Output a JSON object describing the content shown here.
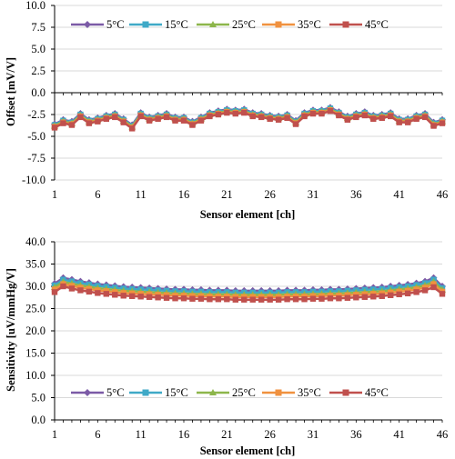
{
  "colors": {
    "5C": "#7b5aa6",
    "15C": "#3fa9c7",
    "25C": "#8db64b",
    "35C": "#f0913f",
    "45C": "#c0504d"
  },
  "chart_data": [
    {
      "type": "line",
      "title": "",
      "xlabel": "Sensor element [ch]",
      "ylabel": "Offset [mV/V]",
      "xlim": [
        1,
        46
      ],
      "ylim": [
        -10,
        10
      ],
      "grid": "horizontal",
      "legend_position": "top",
      "x_ticks": [
        "1",
        "6",
        "11",
        "16",
        "21",
        "26",
        "31",
        "36",
        "41",
        "46"
      ],
      "y_ticks": [
        "-10.0",
        "-7.5",
        "-5.0",
        "-2.5",
        "0.0",
        "2.5",
        "5.0",
        "7.5",
        "10.0"
      ],
      "x": [
        1,
        2,
        3,
        4,
        5,
        6,
        7,
        8,
        9,
        10,
        11,
        12,
        13,
        14,
        15,
        16,
        17,
        18,
        19,
        20,
        21,
        22,
        23,
        24,
        25,
        26,
        27,
        28,
        29,
        30,
        31,
        32,
        33,
        34,
        35,
        36,
        37,
        38,
        39,
        40,
        41,
        42,
        43,
        44,
        45,
        46
      ],
      "series": [
        {
          "name": "5°C",
          "values": [
            -3.6,
            -3.1,
            -3.3,
            -2.4,
            -3.1,
            -2.9,
            -2.6,
            -2.4,
            -3.0,
            -3.7,
            -2.3,
            -2.8,
            -2.6,
            -2.4,
            -2.8,
            -2.8,
            -3.3,
            -2.8,
            -2.3,
            -2.1,
            -1.9,
            -2.0,
            -1.9,
            -2.3,
            -2.4,
            -2.6,
            -2.7,
            -2.5,
            -3.2,
            -2.3,
            -2.0,
            -2.0,
            -1.7,
            -2.2,
            -2.7,
            -2.4,
            -2.2,
            -2.6,
            -2.5,
            -2.3,
            -3.0,
            -3.0,
            -2.6,
            -2.4,
            -3.4,
            -3.1
          ]
        },
        {
          "name": "15°C",
          "values": [
            -3.7,
            -3.2,
            -3.4,
            -2.5,
            -3.2,
            -3.0,
            -2.7,
            -2.5,
            -3.1,
            -3.8,
            -2.4,
            -2.9,
            -2.7,
            -2.5,
            -2.9,
            -2.9,
            -3.4,
            -2.9,
            -2.4,
            -2.2,
            -2.0,
            -2.1,
            -2.0,
            -2.4,
            -2.5,
            -2.7,
            -2.8,
            -2.6,
            -3.3,
            -2.4,
            -2.1,
            -2.1,
            -1.8,
            -2.3,
            -2.8,
            -2.5,
            -2.3,
            -2.7,
            -2.6,
            -2.4,
            -3.1,
            -3.1,
            -2.7,
            -2.5,
            -3.5,
            -3.2
          ]
        },
        {
          "name": "25°C",
          "values": [
            -3.8,
            -3.3,
            -3.5,
            -2.6,
            -3.3,
            -3.1,
            -2.8,
            -2.6,
            -3.2,
            -3.9,
            -2.5,
            -3.0,
            -2.8,
            -2.6,
            -3.0,
            -3.0,
            -3.5,
            -3.0,
            -2.5,
            -2.3,
            -2.1,
            -2.2,
            -2.1,
            -2.5,
            -2.6,
            -2.8,
            -2.9,
            -2.7,
            -3.4,
            -2.5,
            -2.2,
            -2.2,
            -1.9,
            -2.4,
            -2.9,
            -2.6,
            -2.4,
            -2.8,
            -2.7,
            -2.5,
            -3.2,
            -3.2,
            -2.8,
            -2.6,
            -3.6,
            -3.3
          ]
        },
        {
          "name": "35°C",
          "values": [
            -3.9,
            -3.4,
            -3.6,
            -2.7,
            -3.4,
            -3.2,
            -2.9,
            -2.7,
            -3.3,
            -4.0,
            -2.6,
            -3.1,
            -2.9,
            -2.7,
            -3.1,
            -3.1,
            -3.6,
            -3.1,
            -2.6,
            -2.4,
            -2.2,
            -2.3,
            -2.2,
            -2.6,
            -2.7,
            -2.9,
            -3.0,
            -2.8,
            -3.5,
            -2.6,
            -2.3,
            -2.3,
            -2.0,
            -2.5,
            -3.0,
            -2.7,
            -2.5,
            -2.9,
            -2.8,
            -2.6,
            -3.3,
            -3.3,
            -2.9,
            -2.7,
            -3.7,
            -3.4
          ]
        },
        {
          "name": "45°C",
          "values": [
            -4.0,
            -3.5,
            -3.7,
            -2.8,
            -3.5,
            -3.3,
            -3.0,
            -2.8,
            -3.4,
            -4.1,
            -2.7,
            -3.2,
            -3.0,
            -2.8,
            -3.2,
            -3.2,
            -3.7,
            -3.2,
            -2.7,
            -2.5,
            -2.3,
            -2.4,
            -2.3,
            -2.7,
            -2.8,
            -3.0,
            -3.1,
            -2.9,
            -3.6,
            -2.7,
            -2.4,
            -2.4,
            -2.1,
            -2.6,
            -3.1,
            -2.8,
            -2.6,
            -3.0,
            -2.9,
            -2.7,
            -3.4,
            -3.4,
            -3.0,
            -2.8,
            -3.8,
            -3.5
          ]
        }
      ]
    },
    {
      "type": "line",
      "title": "",
      "xlabel": "Sensor element [ch]",
      "ylabel": "Sensitivity [uV/mmHg/V]",
      "xlim": [
        1,
        46
      ],
      "ylim": [
        0,
        40
      ],
      "grid": "horizontal",
      "legend_position": "bottom",
      "x_ticks": [
        "1",
        "6",
        "11",
        "16",
        "21",
        "26",
        "31",
        "36",
        "41",
        "46"
      ],
      "y_ticks": [
        "0.0",
        "5.0",
        "10.0",
        "15.0",
        "20.0",
        "25.0",
        "30.0",
        "35.0",
        "40.0"
      ],
      "x": [
        1,
        2,
        3,
        4,
        5,
        6,
        7,
        8,
        9,
        10,
        11,
        12,
        13,
        14,
        15,
        16,
        17,
        18,
        19,
        20,
        21,
        22,
        23,
        24,
        25,
        26,
        27,
        28,
        29,
        30,
        31,
        32,
        33,
        34,
        35,
        36,
        37,
        38,
        39,
        40,
        41,
        42,
        43,
        44,
        45,
        46
      ],
      "series": [
        {
          "name": "5°C",
          "values": [
            30.6,
            31.9,
            31.5,
            31.1,
            30.8,
            30.5,
            30.3,
            30.1,
            29.9,
            29.8,
            29.7,
            29.6,
            29.5,
            29.4,
            29.3,
            29.3,
            29.2,
            29.2,
            29.1,
            29.1,
            29.1,
            29.0,
            29.0,
            29.0,
            29.0,
            29.0,
            29.0,
            29.1,
            29.1,
            29.1,
            29.2,
            29.2,
            29.3,
            29.3,
            29.4,
            29.5,
            29.6,
            29.7,
            29.8,
            30.0,
            30.2,
            30.4,
            30.7,
            31.1,
            31.9,
            30.0
          ]
        },
        {
          "name": "15°C",
          "values": [
            30.2,
            31.5,
            31.1,
            30.7,
            30.4,
            30.1,
            29.9,
            29.7,
            29.5,
            29.4,
            29.3,
            29.2,
            29.1,
            29.0,
            28.9,
            28.9,
            28.8,
            28.8,
            28.7,
            28.7,
            28.7,
            28.6,
            28.6,
            28.6,
            28.6,
            28.6,
            28.6,
            28.7,
            28.7,
            28.7,
            28.8,
            28.8,
            28.9,
            28.9,
            29.0,
            29.1,
            29.2,
            29.3,
            29.4,
            29.6,
            29.8,
            30.0,
            30.3,
            30.7,
            31.5,
            29.6
          ]
        },
        {
          "name": "25°C",
          "values": [
            29.8,
            31.0,
            30.6,
            30.2,
            29.9,
            29.6,
            29.4,
            29.2,
            29.0,
            28.9,
            28.8,
            28.7,
            28.6,
            28.5,
            28.4,
            28.4,
            28.3,
            28.3,
            28.2,
            28.2,
            28.2,
            28.1,
            28.1,
            28.1,
            28.1,
            28.1,
            28.1,
            28.2,
            28.2,
            28.2,
            28.3,
            28.3,
            28.4,
            28.4,
            28.5,
            28.6,
            28.7,
            28.8,
            28.9,
            29.1,
            29.3,
            29.5,
            29.8,
            30.2,
            31.0,
            29.2
          ]
        },
        {
          "name": "35°C",
          "values": [
            29.3,
            30.5,
            30.1,
            29.7,
            29.4,
            29.1,
            28.9,
            28.7,
            28.5,
            28.4,
            28.3,
            28.2,
            28.1,
            28.0,
            27.9,
            27.9,
            27.8,
            27.8,
            27.7,
            27.7,
            27.7,
            27.6,
            27.6,
            27.6,
            27.6,
            27.6,
            27.6,
            27.7,
            27.7,
            27.7,
            27.8,
            27.8,
            27.9,
            27.9,
            28.0,
            28.1,
            28.2,
            28.3,
            28.4,
            28.6,
            28.8,
            29.0,
            29.3,
            29.7,
            30.5,
            28.8
          ]
        },
        {
          "name": "45°C",
          "values": [
            28.7,
            30.0,
            29.5,
            29.1,
            28.8,
            28.5,
            28.3,
            28.1,
            27.9,
            27.8,
            27.7,
            27.6,
            27.5,
            27.4,
            27.3,
            27.3,
            27.2,
            27.2,
            27.1,
            27.1,
            27.1,
            27.0,
            27.0,
            27.0,
            27.0,
            27.0,
            27.0,
            27.1,
            27.1,
            27.1,
            27.2,
            27.2,
            27.3,
            27.3,
            27.4,
            27.5,
            27.6,
            27.7,
            27.8,
            28.0,
            28.2,
            28.4,
            28.7,
            29.1,
            29.8,
            28.3
          ]
        }
      ]
    }
  ]
}
